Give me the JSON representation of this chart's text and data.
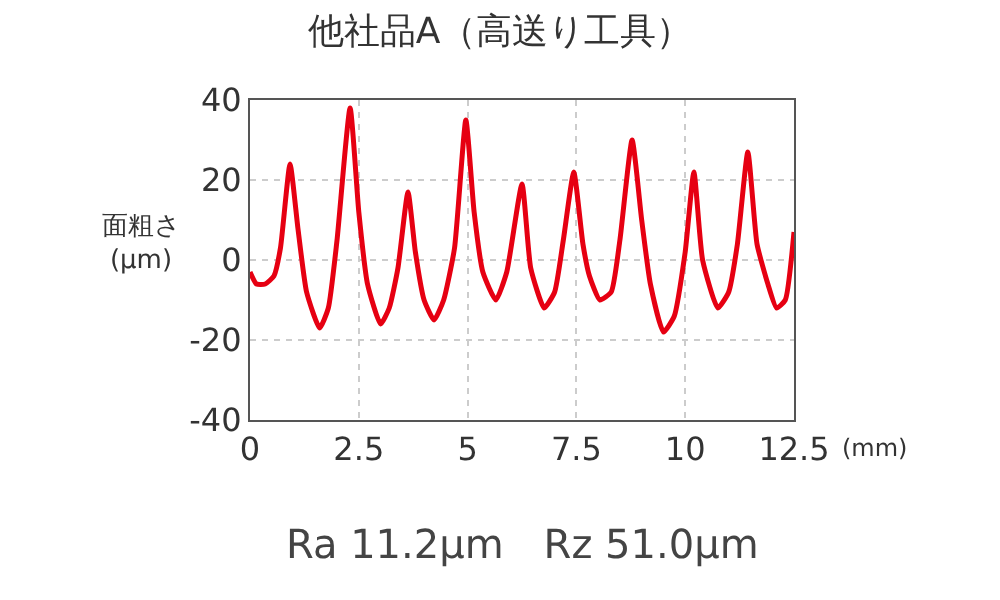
{
  "chart_data": {
    "type": "line",
    "title": "他社品A（高送り工具）",
    "xlabel": "(mm)",
    "ylabel": "面粗さ\n(μm)",
    "x": [
      0,
      0.15,
      0.35,
      0.55,
      0.7,
      0.92,
      1.1,
      1.3,
      1.6,
      1.8,
      2.0,
      2.3,
      2.5,
      2.7,
      3.0,
      3.2,
      3.4,
      3.63,
      3.8,
      4.0,
      4.23,
      4.45,
      4.7,
      4.96,
      5.15,
      5.35,
      5.65,
      5.9,
      6.25,
      6.45,
      6.76,
      7.0,
      7.2,
      7.44,
      7.65,
      7.8,
      8.04,
      8.3,
      8.5,
      8.78,
      9.0,
      9.2,
      9.5,
      9.75,
      10.0,
      10.2,
      10.4,
      10.75,
      11.0,
      11.2,
      11.44,
      11.65,
      11.9,
      12.1,
      12.3,
      12.5
    ],
    "series": [
      {
        "color": "#e60012",
        "values": [
          -3,
          -6,
          -6,
          -4,
          3,
          24,
          8,
          -8,
          -17,
          -12,
          5,
          38,
          12,
          -6,
          -16,
          -12,
          -2,
          17,
          2,
          -10,
          -15,
          -10,
          3,
          35,
          12,
          -3,
          -10,
          -3,
          19,
          -2,
          -12,
          -8,
          5,
          22,
          4,
          -4,
          -10,
          -8,
          5,
          30,
          10,
          -6,
          -18,
          -14,
          2,
          22,
          0,
          -12,
          -8,
          4,
          27,
          4,
          -6,
          -12,
          -10,
          7
        ]
      }
    ],
    "xlim": [
      0,
      12.5
    ],
    "ylim": [
      -40,
      40
    ],
    "xticks": [
      0,
      2.5,
      5,
      7.5,
      10,
      12.5
    ],
    "yticks": [
      -40,
      -20,
      0,
      20,
      40
    ],
    "grid": true,
    "line_style": "solid",
    "marker": "none",
    "annotations": [
      "Ra 11.2μm　Rz 51.0μm"
    ]
  }
}
